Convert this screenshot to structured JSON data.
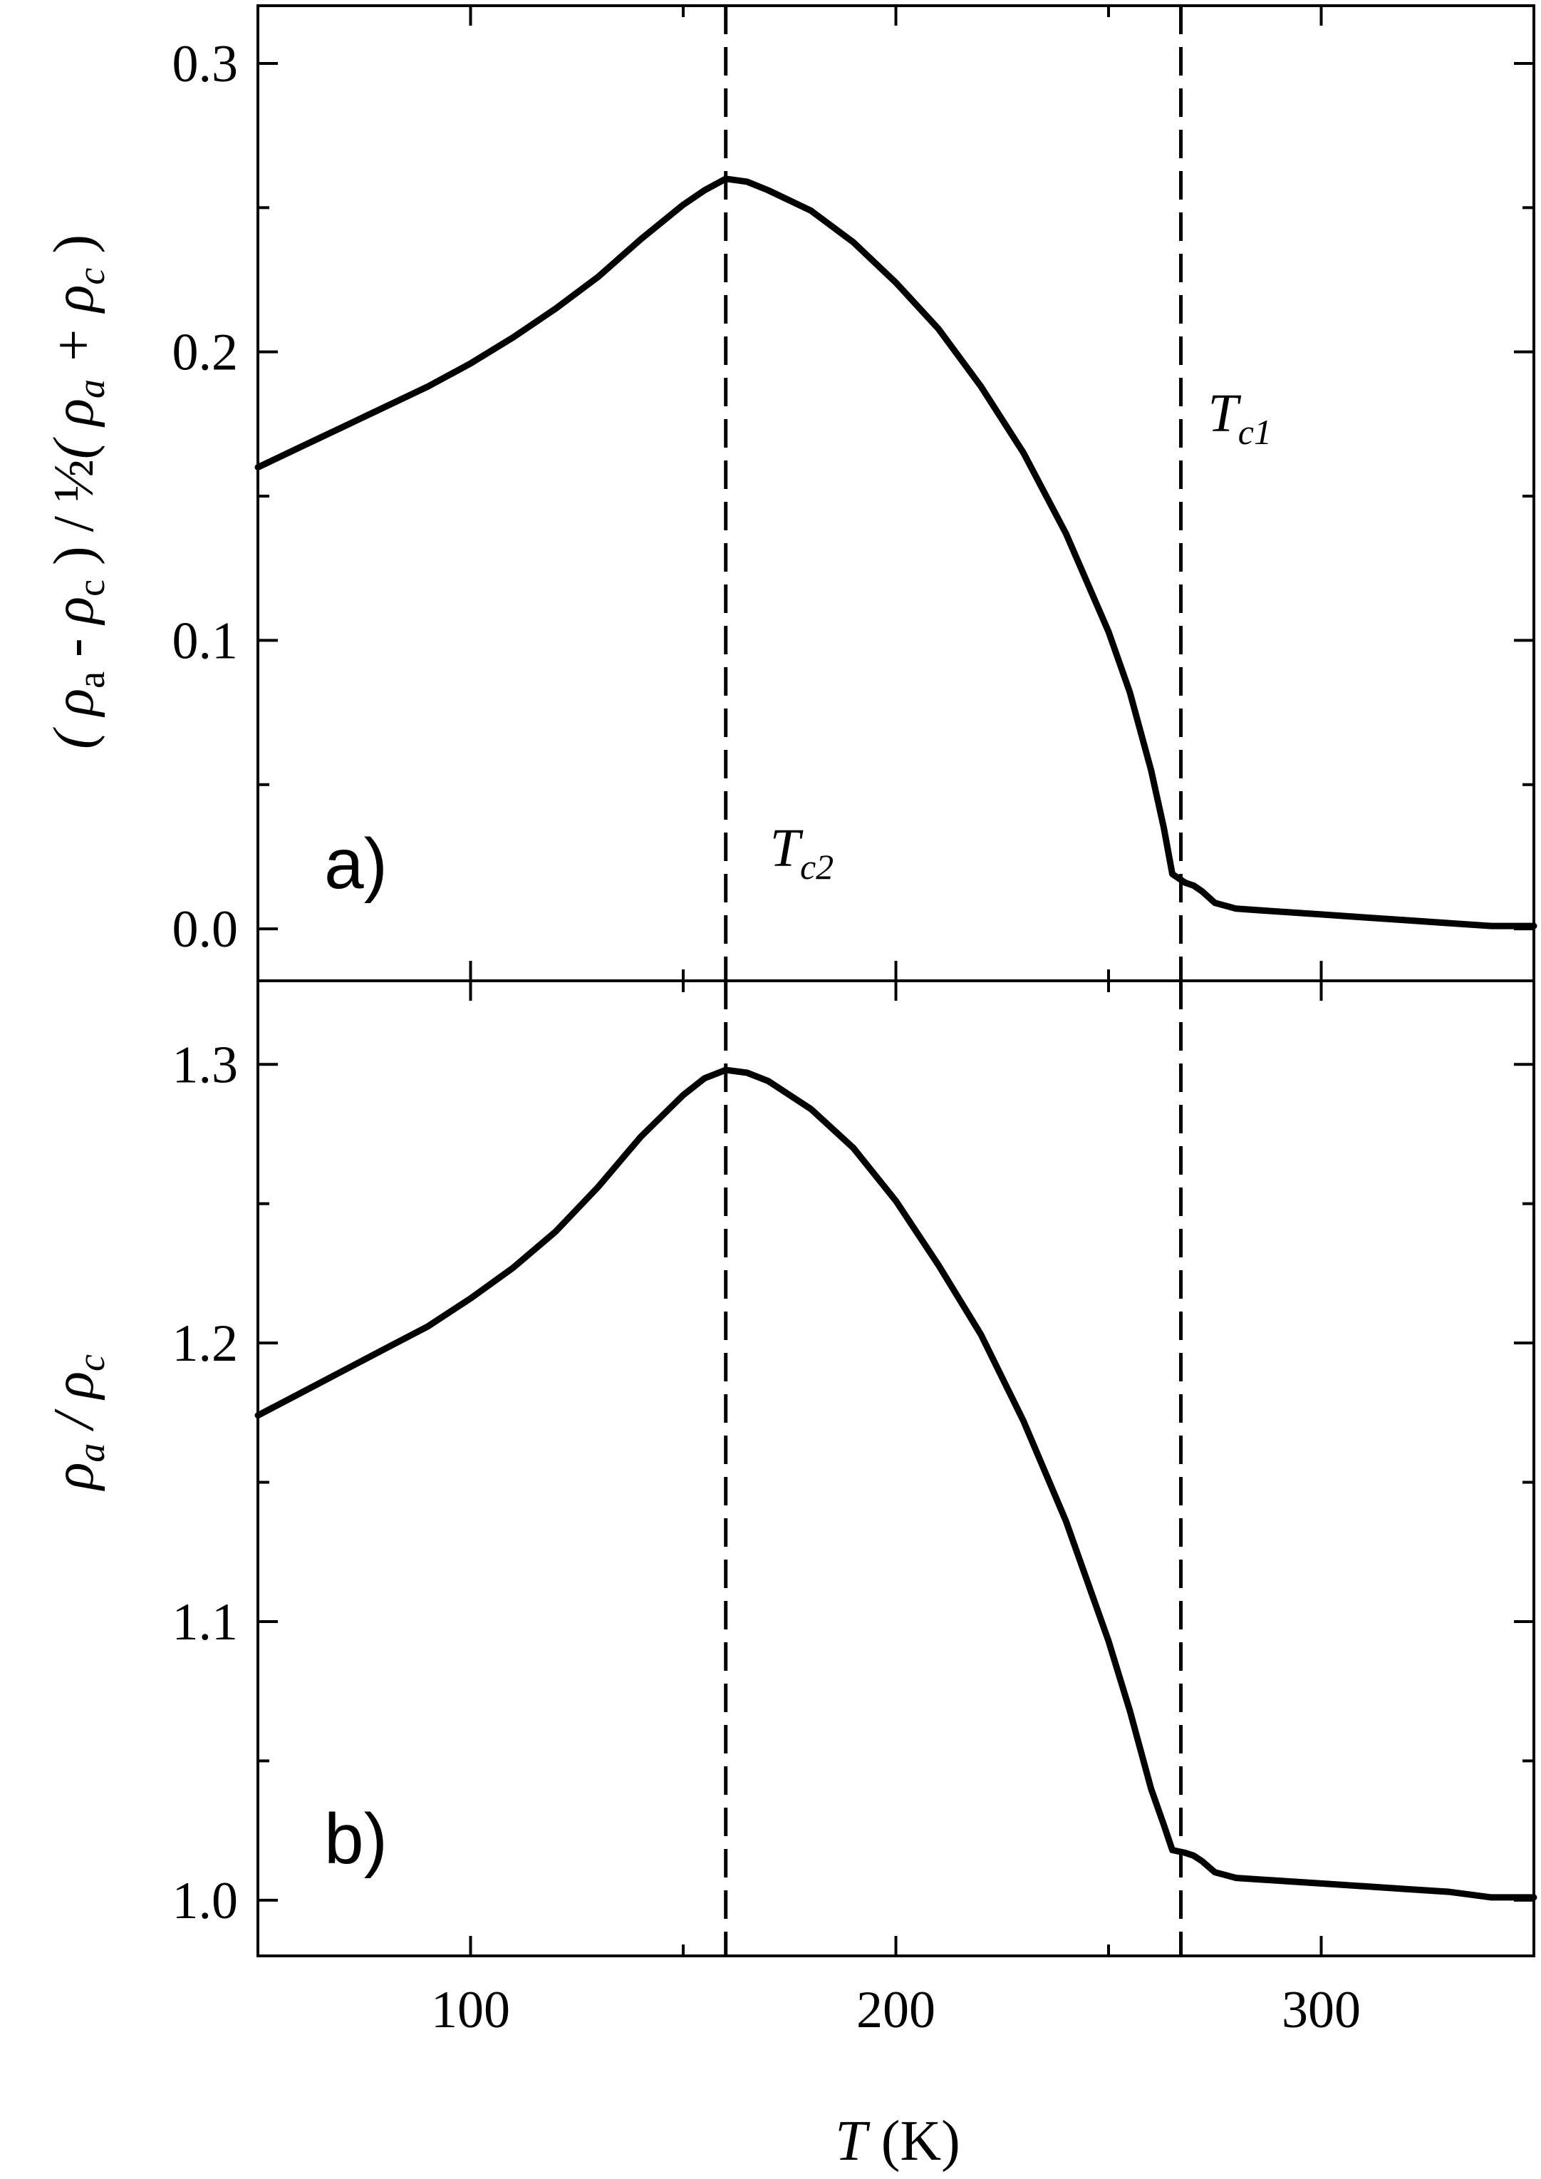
{
  "chart_data": [
    {
      "type": "line",
      "panel_label": "a)",
      "ylabel": "( ρa - ρc ) / ½( ρa + ρc )",
      "ylim": [
        -0.018,
        0.32
      ],
      "yticks": [
        0.0,
        0.1,
        0.2,
        0.3
      ],
      "ytick_labels": [
        "0.0",
        "0.1",
        "0.2",
        "0.3"
      ],
      "xlim": [
        50,
        350
      ],
      "xticks": [
        100,
        200,
        300
      ],
      "ytick_minor": [
        0.05,
        0.15,
        0.25
      ],
      "xtick_minor": [
        50,
        150,
        250,
        350
      ],
      "series": [
        {
          "x": [
            50,
            60,
            70,
            80,
            90,
            100,
            110,
            120,
            130,
            140,
            150,
            155,
            160,
            165,
            170,
            180,
            190,
            200,
            210,
            220,
            230,
            240,
            250,
            255,
            260,
            263,
            265,
            268,
            270,
            272,
            275,
            280,
            290,
            300,
            310,
            320,
            330,
            340,
            350
          ],
          "y": [
            0.16,
            0.167,
            0.174,
            0.181,
            0.188,
            0.196,
            0.205,
            0.215,
            0.226,
            0.239,
            0.251,
            0.256,
            0.26,
            0.259,
            0.256,
            0.249,
            0.238,
            0.224,
            0.208,
            0.188,
            0.165,
            0.137,
            0.103,
            0.082,
            0.055,
            0.035,
            0.019,
            0.016,
            0.015,
            0.013,
            0.009,
            0.007,
            0.006,
            0.005,
            0.004,
            0.003,
            0.002,
            0.001,
            0.001
          ]
        }
      ],
      "vlines": [
        160,
        267
      ],
      "annotations": [
        {
          "text": "T",
          "sub": "c2",
          "x": 160
        },
        {
          "text": "T",
          "sub": "c1",
          "x": 267
        }
      ]
    },
    {
      "type": "line",
      "panel_label": "b)",
      "ylabel": "ρa / ρc",
      "ylim": [
        0.98,
        1.33
      ],
      "yticks": [
        1.0,
        1.1,
        1.2,
        1.3
      ],
      "ytick_labels": [
        "1.0",
        "1.1",
        "1.2",
        "1.3"
      ],
      "xlim": [
        50,
        350
      ],
      "xticks": [
        100,
        200,
        300
      ],
      "xtick_labels": [
        "100",
        "200",
        "300"
      ],
      "ytick_minor": [
        1.05,
        1.15,
        1.25
      ],
      "xtick_minor": [
        50,
        150,
        250,
        350
      ],
      "xlabel": "T (K)",
      "series": [
        {
          "x": [
            50,
            60,
            70,
            80,
            90,
            100,
            110,
            120,
            130,
            140,
            150,
            155,
            160,
            165,
            170,
            180,
            190,
            200,
            210,
            220,
            230,
            240,
            250,
            255,
            260,
            263,
            265,
            268,
            270,
            272,
            275,
            280,
            290,
            300,
            310,
            320,
            330,
            340,
            350
          ],
          "y": [
            1.174,
            1.182,
            1.19,
            1.198,
            1.206,
            1.216,
            1.227,
            1.24,
            1.256,
            1.274,
            1.289,
            1.295,
            1.298,
            1.297,
            1.294,
            1.284,
            1.27,
            1.251,
            1.228,
            1.203,
            1.172,
            1.136,
            1.093,
            1.068,
            1.04,
            1.027,
            1.018,
            1.017,
            1.016,
            1.014,
            1.01,
            1.008,
            1.007,
            1.006,
            1.005,
            1.004,
            1.003,
            1.001,
            1.001
          ]
        }
      ],
      "vlines": [
        160,
        267
      ]
    }
  ]
}
